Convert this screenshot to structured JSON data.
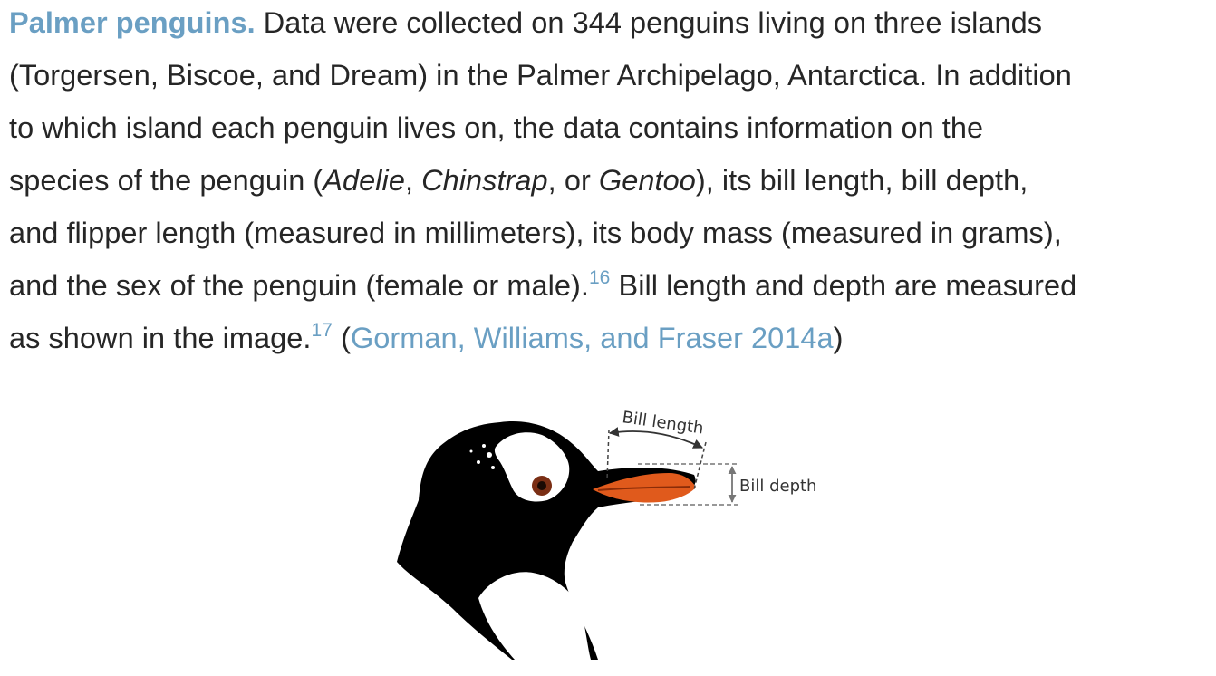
{
  "caption": {
    "heading": "Palmer penguins.",
    "line1_rest": " Data were collected on 344 penguins living on three islands",
    "line2": "(Torgersen, Biscoe, and Dream) in the Palmer Archipelago, Antarctica. In addition",
    "line3": "to which island each penguin lives on, the data contains information on the",
    "line4_a": "species of the penguin (",
    "species_1": "Adelie",
    "sep_1": ", ",
    "species_2": "Chinstrap",
    "sep_2": ", or ",
    "species_3": "Gentoo",
    "line4_b": "), its bill length, bill depth,",
    "line5": "and flipper length (measured in millimeters), its body mass (measured in grams),",
    "line6_a": "and the sex of the penguin (female or male).",
    "footnote_1": "16",
    "line6_b": " Bill length and depth are measured",
    "line7_a": "as shown in the image.",
    "footnote_2": "17",
    "line7_b": " (",
    "citation": "Gorman, Williams, and Fraser 2014a",
    "line7_c": ")"
  },
  "figure": {
    "label_bill_length": "Bill length",
    "label_bill_depth": "Bill depth",
    "colors": {
      "head": "#000000",
      "bill": "#e05a1c",
      "eye": "#7a2e14",
      "annotation": "#333333",
      "guide": "#555555"
    }
  }
}
